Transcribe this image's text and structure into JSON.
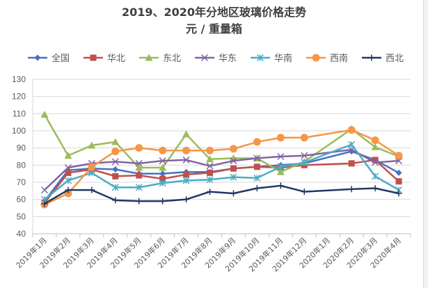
{
  "chart_data": {
    "type": "line",
    "title": "2019、2020年分地区玻璃价格走势",
    "subtitle": "元 / 重量箱",
    "xlabel": "",
    "ylabel": "",
    "ylim": [
      40,
      130
    ],
    "yticks": [
      40,
      50,
      60,
      70,
      80,
      90,
      100,
      110,
      120,
      130
    ],
    "grid": true,
    "legend": "top",
    "categories": [
      "2019年1月",
      "2019年2月",
      "2019年3月",
      "2019年4月",
      "2019年5月",
      "2019年6月",
      "2019年7月",
      "2019年8月",
      "2019年9月",
      "2019年10月",
      "2019年11月",
      "2019年12月",
      "2020年1月",
      "2020年2月",
      "2020年3月",
      "2020年4月"
    ],
    "series": [
      {
        "name": "全国",
        "color": "#4472c4",
        "marker": "diamond",
        "values": [
          59,
          77,
          78,
          77.5,
          75,
          75,
          76,
          76,
          78,
          79,
          80,
          81,
          null,
          88,
          83,
          75.5
        ]
      },
      {
        "name": "华北",
        "color": "#c0504d",
        "marker": "square",
        "values": [
          58,
          75.5,
          77.5,
          73.5,
          74,
          72,
          74.5,
          75.5,
          78,
          79,
          78.5,
          80,
          null,
          81,
          83,
          70.5
        ]
      },
      {
        "name": "东北",
        "color": "#9bbb59",
        "marker": "triangle",
        "values": [
          109.5,
          85.5,
          91.5,
          93.5,
          78.5,
          78.5,
          98,
          83.5,
          84,
          84,
          76,
          82,
          null,
          101,
          90.5,
          85
        ]
      },
      {
        "name": "华东",
        "color": "#8064a2",
        "marker": "x",
        "values": [
          65.5,
          78.5,
          81,
          82,
          81,
          82.5,
          83,
          79.5,
          82.5,
          84,
          85,
          85.5,
          null,
          89,
          81.5,
          82.5
        ]
      },
      {
        "name": "华南",
        "color": "#4bacc6",
        "marker": "star",
        "values": [
          60,
          71,
          75.5,
          67,
          67,
          69.5,
          71,
          71.5,
          73,
          72.5,
          79,
          81.5,
          null,
          92,
          73.5,
          65.5
        ]
      },
      {
        "name": "西南",
        "color": "#f79646",
        "marker": "circle",
        "values": [
          57,
          63.5,
          79,
          88,
          90,
          88.5,
          88.5,
          88.5,
          89.5,
          93.5,
          96,
          96,
          null,
          100.5,
          94.5,
          85.5
        ]
      },
      {
        "name": "西北",
        "color": "#1f3864",
        "marker": "plus",
        "values": [
          57.5,
          65.5,
          65.5,
          59.5,
          59,
          59,
          60,
          64.5,
          63.5,
          66.5,
          68,
          64.5,
          null,
          66,
          66.5,
          63.5
        ]
      }
    ]
  }
}
